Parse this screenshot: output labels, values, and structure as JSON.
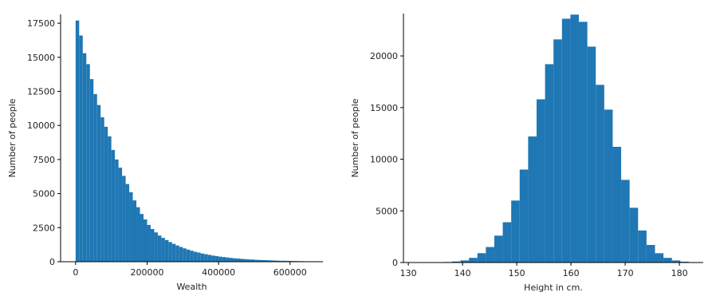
{
  "chart_data": [
    {
      "type": "histogram",
      "xlabel": "Wealth",
      "ylabel": "Number of people",
      "color": "#1f77b4",
      "bins": [
        0,
        10000,
        20000,
        30000,
        40000,
        50000,
        60000,
        70000,
        80000,
        90000,
        100000,
        110000,
        120000,
        130000,
        140000,
        150000,
        160000,
        170000,
        180000,
        190000,
        200000,
        210000,
        220000,
        230000,
        240000,
        250000,
        260000,
        270000,
        280000,
        290000,
        300000,
        310000,
        320000,
        330000,
        340000,
        350000,
        360000,
        370000,
        380000,
        390000,
        400000,
        410000,
        420000,
        430000,
        440000,
        450000,
        460000,
        470000,
        480000,
        490000,
        500000,
        510000,
        520000,
        530000,
        540000,
        550000,
        560000,
        570000,
        580000,
        590000,
        600000,
        610000,
        620000,
        630000,
        640000,
        650000,
        660000,
        670000,
        680000
      ],
      "values": [
        17700,
        16600,
        15300,
        14500,
        13400,
        12300,
        11500,
        10600,
        9900,
        9200,
        8200,
        7500,
        6900,
        6300,
        5700,
        5100,
        4500,
        4000,
        3500,
        3100,
        2700,
        2400,
        2150,
        1920,
        1750,
        1590,
        1440,
        1310,
        1190,
        1080,
        980,
        890,
        810,
        730,
        670,
        600,
        550,
        500,
        450,
        410,
        370,
        340,
        310,
        280,
        250,
        230,
        210,
        190,
        170,
        160,
        140,
        130,
        120,
        110,
        100,
        90,
        80,
        70,
        70,
        60,
        50,
        50,
        40,
        40,
        30,
        30,
        30,
        20
      ],
      "xlim": [
        -42000,
        692000
      ],
      "ylim": [
        0,
        18150
      ],
      "xticks": [
        0,
        200000,
        400000,
        600000
      ],
      "yticks": [
        0,
        2500,
        5000,
        7500,
        10000,
        12500,
        15000,
        17500
      ]
    },
    {
      "type": "histogram",
      "xlabel": "Height in cm.",
      "ylabel": "Number of people",
      "color": "#1f77b4",
      "bins": [
        136.5,
        138.06,
        139.62,
        141.18,
        142.74,
        144.3,
        145.86,
        147.42,
        148.98,
        150.54,
        152.1,
        153.66,
        155.22,
        156.78,
        158.34,
        159.9,
        161.46,
        163.02,
        164.58,
        166.14,
        167.7,
        169.26,
        170.82,
        172.38,
        173.94,
        175.5,
        177.06,
        178.62,
        180.18,
        181.74,
        183.3
      ],
      "values": [
        50,
        100,
        200,
        450,
        900,
        1500,
        2600,
        3900,
        6000,
        9000,
        12200,
        15800,
        19200,
        21600,
        23600,
        24000,
        23300,
        20900,
        17200,
        14800,
        11200,
        8000,
        5300,
        3100,
        1700,
        900,
        450,
        200,
        80,
        30
      ],
      "xlim": [
        129.1,
        184.4
      ],
      "ylim": [
        0,
        24100
      ],
      "xticks": [
        130,
        140,
        150,
        160,
        170,
        180
      ],
      "yticks": [
        0,
        5000,
        10000,
        15000,
        20000
      ]
    }
  ]
}
